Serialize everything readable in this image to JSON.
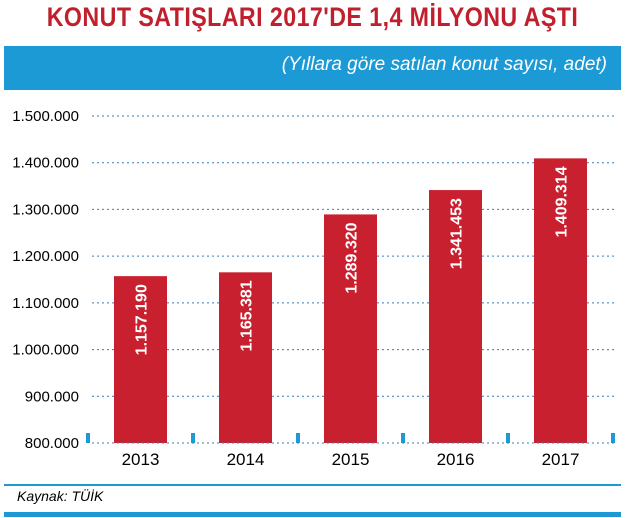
{
  "colors": {
    "title": "#c0202d",
    "bar": "#c8202e",
    "accent_blue": "#1b9ad6",
    "grid": "#3a7fb0",
    "tick_label": "#000000",
    "data_label": "#ffffff"
  },
  "header": {
    "title": "KONUT SATIŞLARI 2017'DE 1,4 MİLYONU AŞTI",
    "subtitle": "(Yıllara göre satılan konut sayısı, adet)"
  },
  "footer": {
    "source": "Kaynak: TÜİK"
  },
  "chart_data": {
    "type": "bar",
    "title": "KONUT SATIŞLARI 2017'DE 1,4 MİLYONU AŞTI",
    "subtitle": "(Yıllara göre satılan konut sayısı, adet)",
    "categories": [
      "2013",
      "2014",
      "2015",
      "2016",
      "2017"
    ],
    "values": [
      1157190,
      1165381,
      1289320,
      1341453,
      1409314
    ],
    "data_labels": [
      "1.157.190",
      "1.165.381",
      "1.289.320",
      "1.341.453",
      "1.409.314"
    ],
    "ylim": [
      800000,
      1500000
    ],
    "yticks": [
      800000,
      900000,
      1000000,
      1100000,
      1200000,
      1300000,
      1400000,
      1500000
    ],
    "ytick_labels": [
      "800.000",
      "900.000",
      "1.000.000",
      "1.100.000",
      "1.200.000",
      "1.300.000",
      "1.400.000",
      "1.500.000"
    ],
    "grid": true,
    "legend": "none",
    "xlabel": "",
    "ylabel": ""
  }
}
